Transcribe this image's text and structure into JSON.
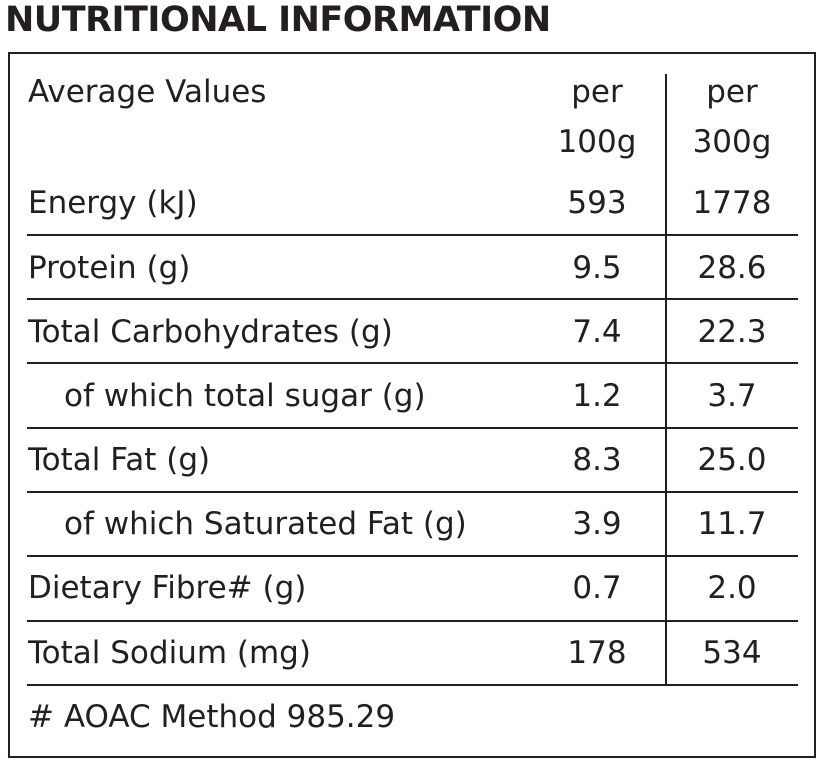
{
  "title": "NUTRITIONAL INFORMATION",
  "header": {
    "label": "Average Values",
    "col1_line1": "per",
    "col1_line2": "100g",
    "col2_line1": "per",
    "col2_line2": "300g"
  },
  "rows": [
    {
      "label": "Energy (kJ)",
      "per100g": "593",
      "per300g": "1778",
      "indent": false
    },
    {
      "label": "Protein (g)",
      "per100g": "9.5",
      "per300g": "28.6",
      "indent": false
    },
    {
      "label": "Total Carbohydrates (g)",
      "per100g": "7.4",
      "per300g": "22.3",
      "indent": false
    },
    {
      "label": "of which total sugar (g)",
      "per100g": "1.2",
      "per300g": "3.7",
      "indent": true
    },
    {
      "label": "Total Fat (g)",
      "per100g": "8.3",
      "per300g": "25.0",
      "indent": false
    },
    {
      "label": "of which Saturated Fat (g)",
      "per100g": "3.9",
      "per300g": "11.7",
      "indent": true
    },
    {
      "label": "Dietary Fibre# (g)",
      "per100g": "0.7",
      "per300g": "2.0",
      "indent": false
    },
    {
      "label": "Total Sodium (mg)",
      "per100g": "178",
      "per300g": "534",
      "indent": false
    }
  ],
  "footnote": "# AOAC Method 985.29"
}
